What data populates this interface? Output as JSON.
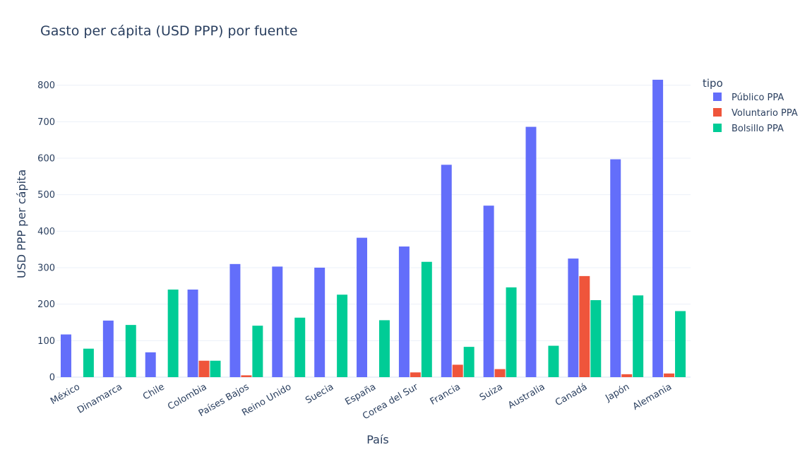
{
  "chart_data": {
    "type": "bar",
    "title": "Gasto per cápita (USD PPP) por fuente",
    "xlabel": "País",
    "ylabel": "USD PPP per cápita",
    "ylim": [
      0,
      840
    ],
    "yticks": [
      0,
      100,
      200,
      300,
      400,
      500,
      600,
      700,
      800
    ],
    "legend_title": "tipo",
    "legend_position": "top-right",
    "grid": true,
    "categories": [
      "México",
      "Dinamarca",
      "Chile",
      "Colombia",
      "Países Bajos",
      "Reino Unido",
      "Suecia",
      "España",
      "Corea del Sur",
      "Francia",
      "Suiza",
      "Australia",
      "Canadá",
      "Japón",
      "Alemania"
    ],
    "series": [
      {
        "name": "Público PPA",
        "color": "#636efa",
        "values": [
          117,
          155,
          68,
          240,
          310,
          303,
          300,
          382,
          358,
          582,
          470,
          686,
          325,
          597,
          815
        ]
      },
      {
        "name": "Voluntario PPA",
        "color": "#ef553b",
        "values": [
          0,
          0,
          0,
          45,
          5,
          0,
          0,
          0,
          13,
          34,
          22,
          0,
          277,
          8,
          10
        ]
      },
      {
        "name": "Bolsillo PPA",
        "color": "#00cc96",
        "values": [
          78,
          143,
          240,
          45,
          141,
          163,
          226,
          156,
          316,
          83,
          246,
          86,
          211,
          224,
          181
        ]
      }
    ]
  }
}
